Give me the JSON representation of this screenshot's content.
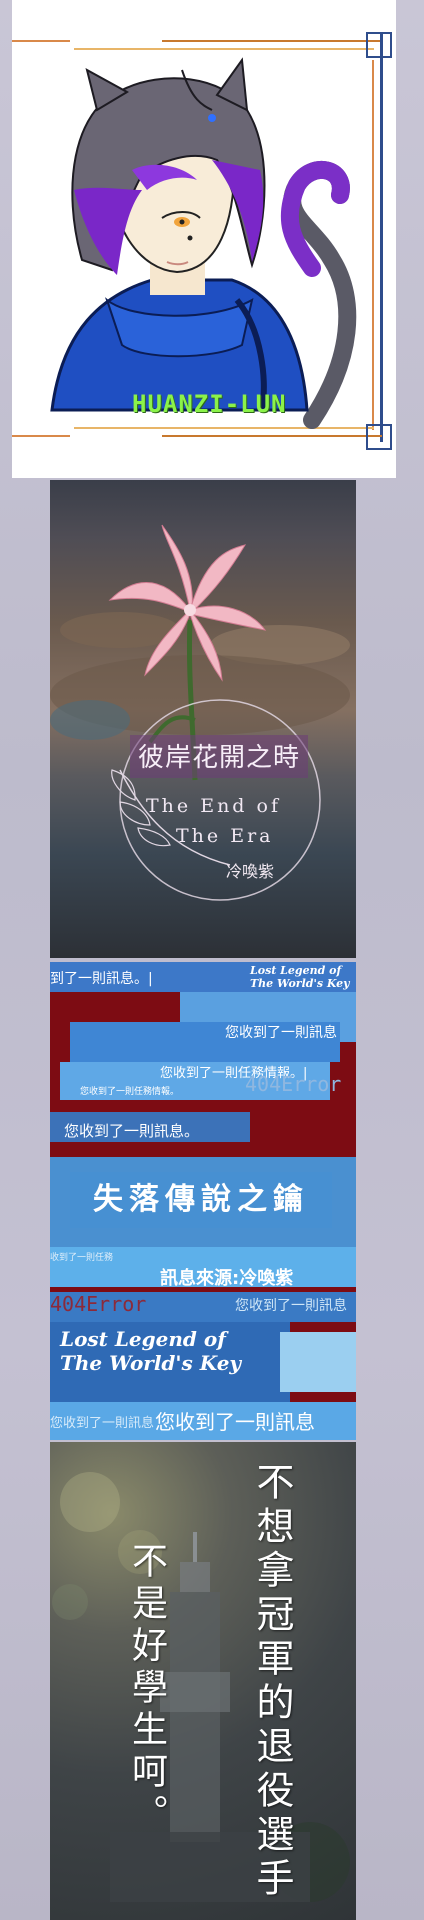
{
  "avatar_card": {
    "signature": "HUANZI-LUN"
  },
  "flower_card": {
    "title": "彼岸花開之時",
    "subtitle_line1": "The End of",
    "subtitle_line2": "The Era",
    "author": "冷喚紫"
  },
  "key_card": {
    "notices": [
      "到了一則訊息。|",
      "您收到了一則訊息",
      "您收到了一則任務情報。|",
      "您收到了一則任務情報。",
      "您收到了一則訊息。",
      "收到了一則任務",
      "您收到了一則訊息",
      "您收到了一則訊息",
      "您收到了一則訊息"
    ],
    "corner_en": "Lost Legend of The World's Key",
    "error_text": "404Error",
    "title": "失落傳說之鑰",
    "source": "訊息來源:冷喚紫",
    "title_en_line1": "Lost Legend of",
    "title_en_line2": "The World's Key"
  },
  "champion_card": {
    "right_text": "不想拿冠軍的退役選手",
    "left_text": "不是好學生呵。"
  },
  "colors": {
    "avatar_frame_orange": "#d9894a",
    "avatar_frame_blue": "#2f4d8c",
    "key_red": "#7d0c13",
    "key_blue": "#4a90d0"
  }
}
